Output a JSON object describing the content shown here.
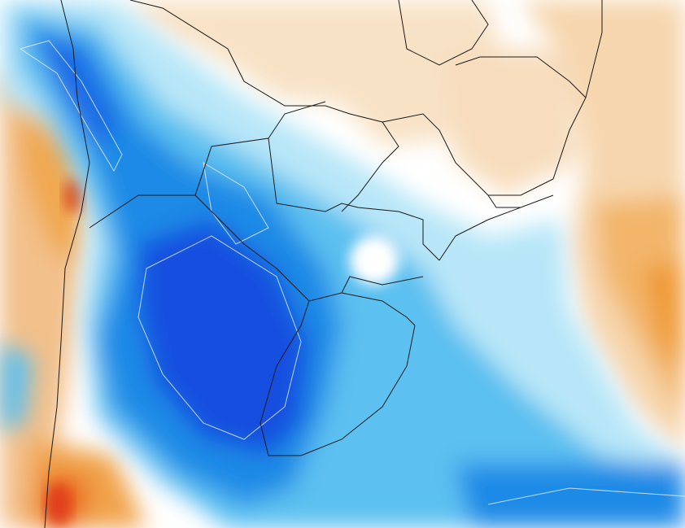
{
  "map": {
    "palette": {
      "background": "#ffffff",
      "warm_light": "#f6dcbc",
      "warm_mid": "#f2b56a",
      "warm_strong": "#ef8a1f",
      "warm_extreme": "#e0401a",
      "cool_light": "#b8e6f8",
      "cool_mid": "#5cc0f0",
      "cool_strong": "#1a8ae6",
      "cool_deep": "#1450e0",
      "border": "#1a1a1a",
      "contour": "#e8f2ff"
    }
  }
}
